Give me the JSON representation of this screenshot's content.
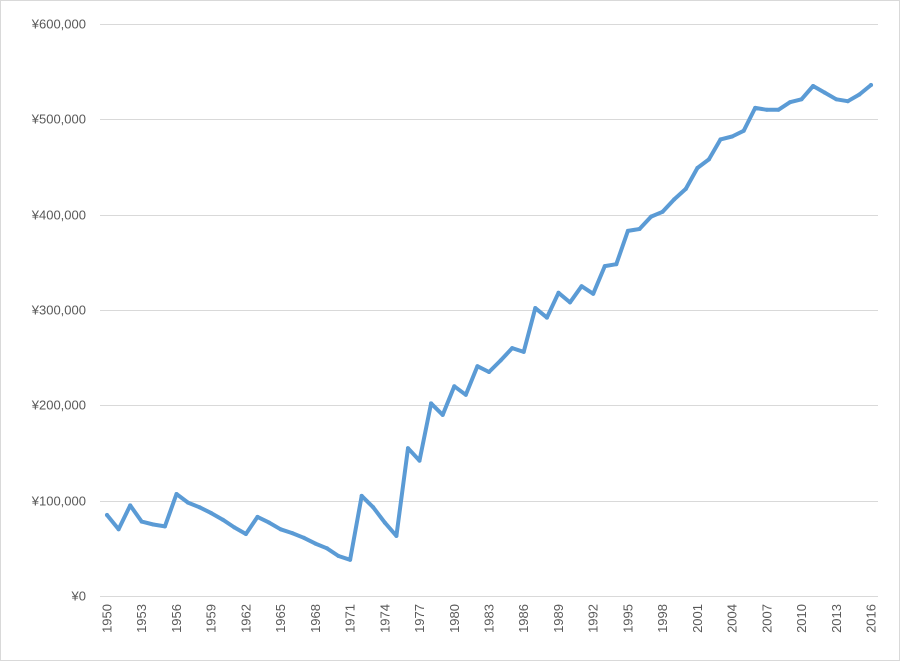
{
  "chart_data": {
    "type": "line",
    "title": "",
    "xlabel": "",
    "ylabel": "",
    "ylim": [
      0,
      600000
    ],
    "yticks": [
      0,
      100000,
      200000,
      300000,
      400000,
      500000,
      600000
    ],
    "ytick_labels": [
      "¥0",
      "¥100,000",
      "¥200,000",
      "¥300,000",
      "¥400,000",
      "¥500,000",
      "¥600,000"
    ],
    "xtick_labels": [
      "1950",
      "1953",
      "1956",
      "1959",
      "1962",
      "1965",
      "1968",
      "1971",
      "1974",
      "1977",
      "1980",
      "1983",
      "1986",
      "1989",
      "1992",
      "1995",
      "1998",
      "2001",
      "2004",
      "2007",
      "2010",
      "2013",
      "2016"
    ],
    "grid": "horizontal",
    "legend": "none",
    "line_color": "#5b9bd5",
    "x": [
      1950,
      1951,
      1952,
      1953,
      1954,
      1955,
      1956,
      1957,
      1958,
      1959,
      1960,
      1961,
      1962,
      1963,
      1964,
      1965,
      1966,
      1967,
      1968,
      1969,
      1970,
      1971,
      1972,
      1973,
      1974,
      1975,
      1976,
      1977,
      1978,
      1979,
      1980,
      1981,
      1982,
      1983,
      1984,
      1985,
      1986,
      1987,
      1988,
      1989,
      1990,
      1991,
      1992,
      1993,
      1994,
      1995,
      1996,
      1997,
      1998,
      1999,
      2000,
      2001,
      2002,
      2003,
      2004,
      2005,
      2006,
      2007,
      2008,
      2009,
      2010,
      2011,
      2012,
      2013,
      2014,
      2015,
      2016
    ],
    "series": [
      {
        "values": [
          85000,
          70000,
          95000,
          78000,
          75000,
          73000,
          107000,
          98000,
          93000,
          87000,
          80000,
          72000,
          65000,
          83000,
          77000,
          70000,
          66000,
          61000,
          55000,
          50000,
          42000,
          38000,
          105000,
          93000,
          77000,
          63000,
          155000,
          142000,
          202000,
          190000,
          220000,
          211000,
          241000,
          235000,
          247000,
          260000,
          256000,
          302000,
          292000,
          318000,
          308000,
          325000,
          317000,
          346000,
          348000,
          383000,
          385000,
          398000,
          403000,
          416000,
          427000,
          449000,
          458000,
          479000,
          482000,
          488000,
          512000,
          510000,
          510000,
          518000,
          521000,
          535000,
          528000,
          521000,
          519000,
          526000,
          536000
        ]
      }
    ]
  }
}
